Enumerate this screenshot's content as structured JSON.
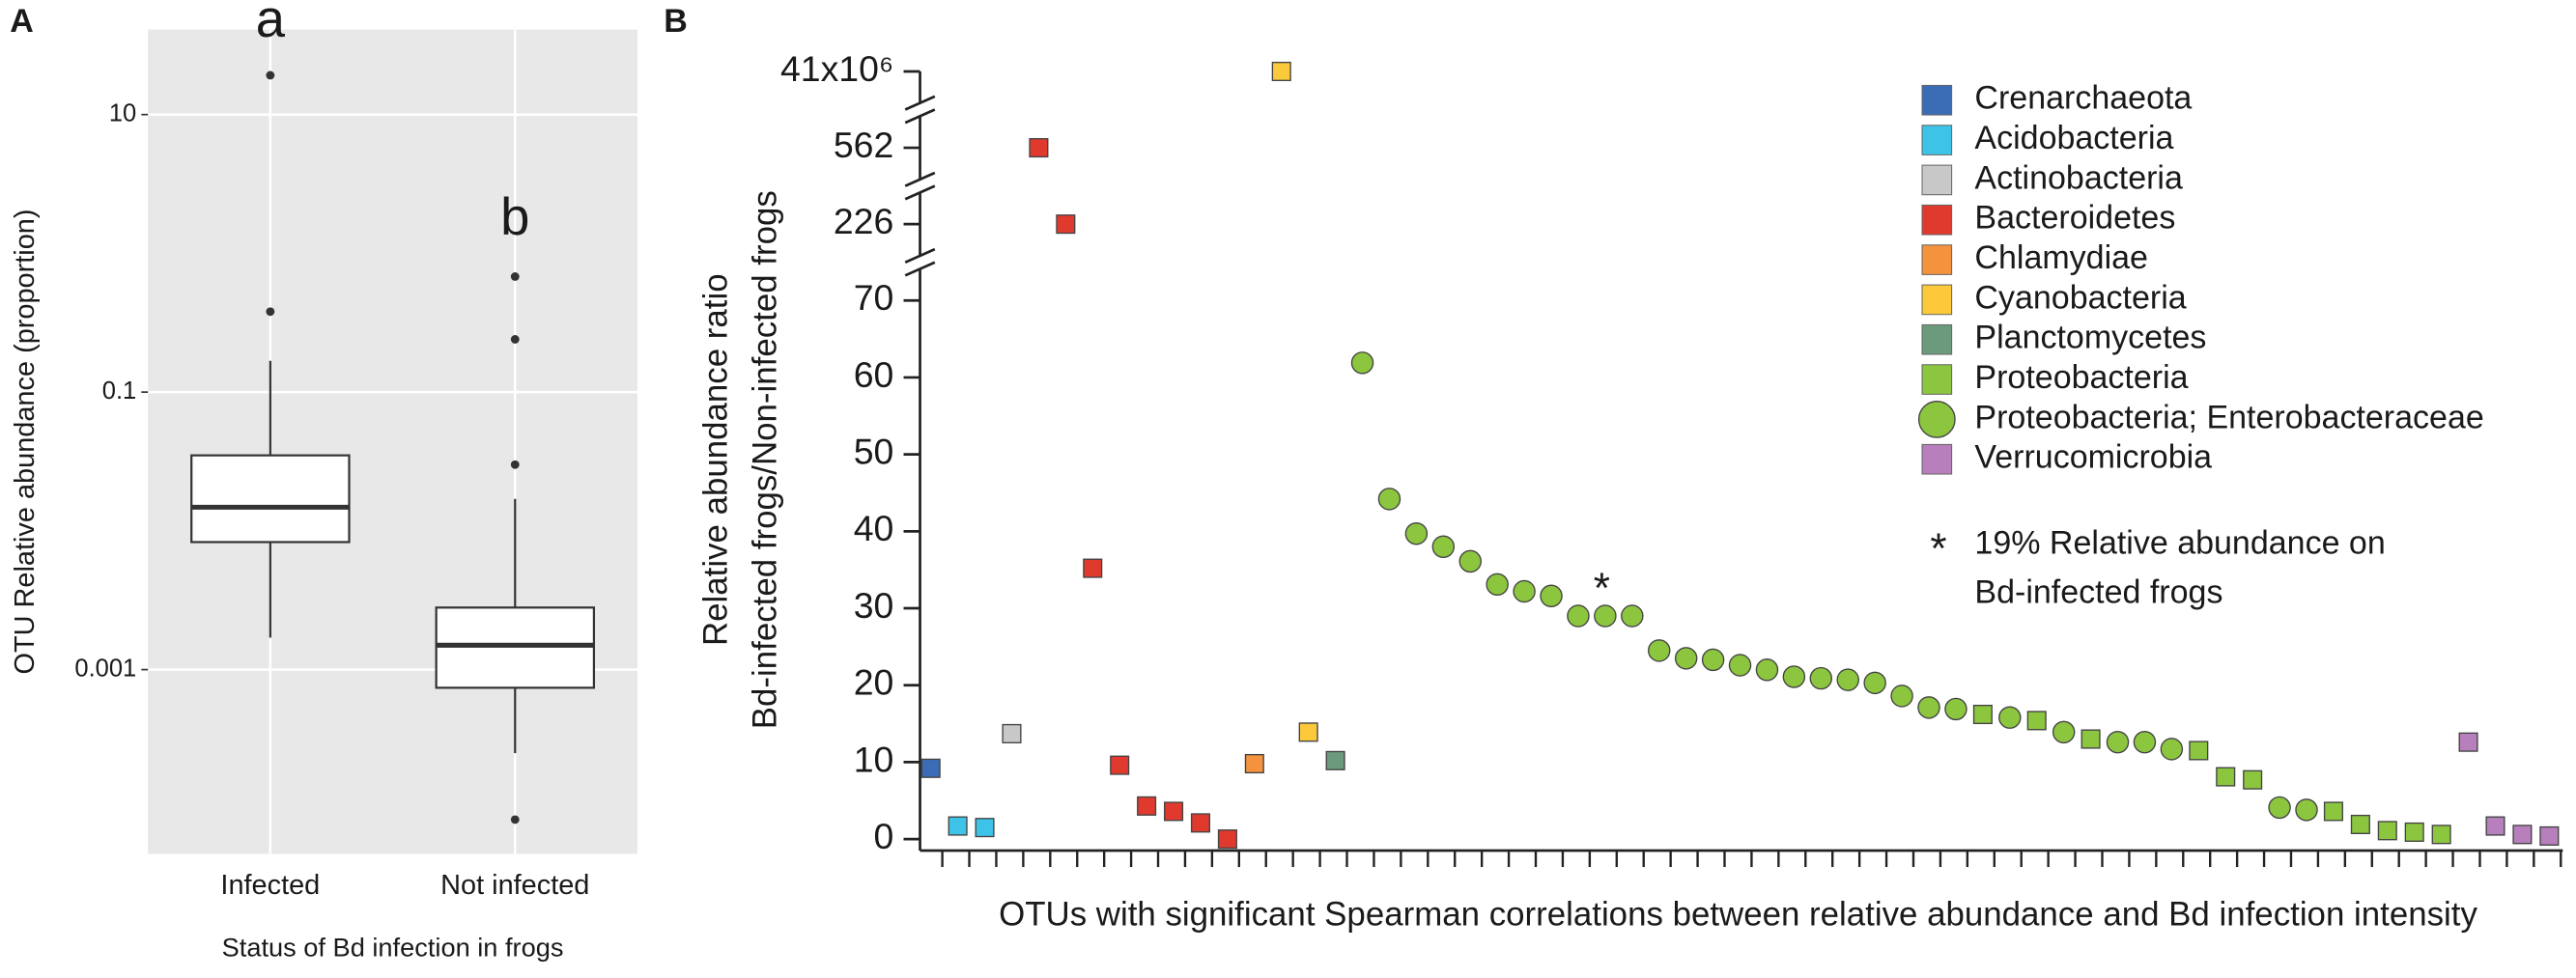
{
  "chart_data": [
    {
      "type": "box",
      "panel": "A",
      "y_label": "OTU Relative abundance (proportion)",
      "x_label": "Status of Bd infection in frogs",
      "categories": [
        "Infected",
        "Not infected"
      ],
      "group_labels": [
        "a",
        "b"
      ],
      "boxes": [
        {
          "whislo": 0.0017,
          "q1": 0.0083,
          "med": 0.0148,
          "q3": 0.035,
          "whishi": 0.168,
          "fliers": [
            19.2,
            0.38
          ]
        },
        {
          "whislo": 0.00025,
          "q1": 0.00074,
          "med": 0.0015,
          "q3": 0.0028,
          "whishi": 0.017,
          "fliers": [
            0.68,
            0.24,
            0.03,
            8.3e-05
          ]
        }
      ],
      "log_y": true,
      "ylim": [
        4.7e-05,
        41
      ],
      "yticks": [
        10,
        0.1,
        0.001
      ],
      "grid": true,
      "background": "#e8e8e8",
      "box_color": "#ffffff"
    },
    {
      "type": "scatter",
      "panel": "B",
      "y_label": [
        "Relative abundance ratio",
        "Bd-infected frogs/Non-infected frogs"
      ],
      "x_label": "OTUs with significant Spearman correlations between relative abundance and Bd infection intensity",
      "xlim": [
        0.6,
        61.5
      ],
      "ylim": [
        0,
        41000000
      ],
      "yticks": [
        0,
        10,
        20,
        30,
        40,
        50,
        60,
        70,
        226,
        562,
        {
          "value": 41000000,
          "label": "41x10⁶"
        }
      ],
      "broken_axis": true,
      "legend": "upper right",
      "asterisk": "*",
      "note": [
        "19% Relative abundance on",
        "Bd-infected frogs"
      ],
      "series": [
        {
          "name": "Crenarchaeota",
          "color": "#3a6db5",
          "marker": "square",
          "x": [
            1
          ],
          "values": [
            9.2
          ]
        },
        {
          "name": "Acidobacteria",
          "color": "#3ec3e8",
          "marker": "square",
          "x": [
            2,
            3
          ],
          "values": [
            1.7,
            1.5
          ]
        },
        {
          "name": "Actinobacteria",
          "color": "#c8c8c8",
          "marker": "square",
          "x": [
            4
          ],
          "values": [
            13.7
          ]
        },
        {
          "name": "Bacteroidetes",
          "color": "#e03a2e",
          "marker": "square",
          "x": [
            5,
            6,
            7,
            8,
            9,
            10,
            11,
            12
          ],
          "values": [
            562,
            226,
            35.2,
            9.6,
            4.3,
            3.6,
            2.1,
            0
          ]
        },
        {
          "name": "Chlamydiae",
          "color": "#f5923e",
          "marker": "square",
          "x": [
            13
          ],
          "values": [
            9.8
          ]
        },
        {
          "name": "Cyanobacteria",
          "color": "#fbc93a",
          "marker": "square",
          "x": [
            14,
            15
          ],
          "values": [
            41000000,
            13.9
          ]
        },
        {
          "name": "Planctomycetes",
          "color": "#6b9a7c",
          "marker": "square",
          "x": [
            16
          ],
          "values": [
            10.2
          ]
        },
        {
          "name": "Proteobacteria",
          "color": "#8cc63f",
          "marker": "square",
          "x": [
            40,
            42,
            44,
            48,
            49,
            50,
            53,
            54,
            55,
            56,
            57
          ],
          "values": [
            16.2,
            15.4,
            13.0,
            11.5,
            8.1,
            7.7,
            3.6,
            1.9,
            1.1,
            0.9,
            0.6
          ]
        },
        {
          "name": "Proteobacteria; Enterobacteraceae",
          "color": "#8cc63f",
          "marker": "circle",
          "x": [
            17,
            18,
            19,
            20,
            21,
            22,
            23,
            24,
            25,
            26,
            27,
            28,
            29,
            30,
            31,
            32,
            33,
            34,
            35,
            36,
            37,
            38,
            39,
            41,
            43,
            45,
            46,
            47,
            51,
            52
          ],
          "values": [
            61.9,
            44.2,
            39.7,
            38.0,
            36.1,
            33.1,
            32.2,
            31.6,
            29.0,
            29.0,
            29.0,
            24.5,
            23.5,
            23.3,
            22.6,
            22.0,
            21.1,
            20.9,
            20.7,
            20.3,
            18.6,
            17.1,
            16.9,
            15.8,
            13.9,
            12.6,
            12.6,
            11.7,
            4.1,
            3.8
          ]
        },
        {
          "name": "Verrucomicrobia",
          "color": "#b77fbb",
          "marker": "square",
          "x": [
            58,
            59,
            60,
            61
          ],
          "values": [
            12.6,
            1.7,
            0.6,
            0.4
          ]
        }
      ]
    }
  ]
}
